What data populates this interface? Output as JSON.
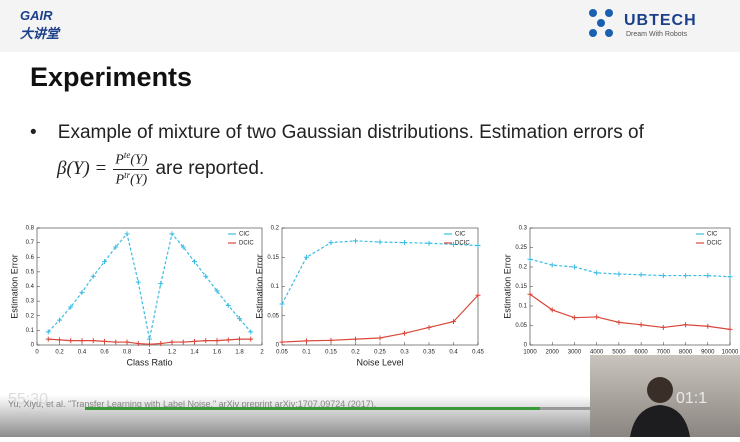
{
  "header": {
    "logo_left": "GAIR",
    "logo_left_sub": "大讲堂",
    "logo_right": "UBTECH",
    "logo_right_sub": "Dream With Robots"
  },
  "slide": {
    "title": "Experiments",
    "bullet": "Example of mixture of two Gaussian distributions. Estimation errors of",
    "formula_lhs": "β(Y) =",
    "num_p": "P",
    "num_sup": "te",
    "num_arg": "(Y)",
    "den_p": "P",
    "den_sup": "tr",
    "den_arg": "(Y)",
    "tail": "are reported."
  },
  "player": {
    "elapsed": "55:30",
    "citation": "Yu, Xiyu, et al. \"Transfer Learning with Label Noise.\" arXiv preprint arXiv:1707.09724 (2017).",
    "remaining": "01:1"
  },
  "chart_data": [
    {
      "type": "line",
      "xlabel": "Class Ratio",
      "ylabel": "Estimation Error",
      "legend": "upper right",
      "x": [
        0.1,
        0.2,
        0.3,
        0.4,
        0.5,
        0.6,
        0.7,
        0.8,
        0.9,
        1.0,
        1.1,
        1.2,
        1.3,
        1.4,
        1.5,
        1.6,
        1.7,
        1.8,
        1.9
      ],
      "series": [
        {
          "name": "CIC",
          "color": "#3bbde3",
          "dashed": true,
          "values": [
            0.09,
            0.17,
            0.26,
            0.36,
            0.47,
            0.57,
            0.67,
            0.76,
            0.43,
            0.04,
            0.42,
            0.76,
            0.67,
            0.57,
            0.47,
            0.37,
            0.27,
            0.18,
            0.09
          ]
        },
        {
          "name": "DCIC",
          "color": "#d9483b",
          "dashed": false,
          "values": [
            0.04,
            0.035,
            0.03,
            0.03,
            0.03,
            0.025,
            0.02,
            0.02,
            0.01,
            0.005,
            0.01,
            0.02,
            0.02,
            0.025,
            0.03,
            0.03,
            0.035,
            0.04,
            0.04
          ]
        }
      ],
      "xlim": [
        0,
        2
      ],
      "ylim": [
        0,
        0.8
      ],
      "xticks": [
        0,
        0.2,
        0.4,
        0.6,
        0.8,
        1,
        1.2,
        1.4,
        1.6,
        1.8,
        2
      ],
      "yticks": [
        0,
        0.1,
        0.2,
        0.3,
        0.4,
        0.5,
        0.6,
        0.7,
        0.8
      ]
    },
    {
      "type": "line",
      "xlabel": "Noise Level",
      "ylabel": "Estimation Error",
      "legend": "upper right",
      "x": [
        0.05,
        0.1,
        0.15,
        0.2,
        0.25,
        0.3,
        0.35,
        0.4,
        0.45
      ],
      "series": [
        {
          "name": "CIC",
          "color": "#3bbde3",
          "dashed": true,
          "values": [
            0.07,
            0.15,
            0.175,
            0.178,
            0.176,
            0.175,
            0.174,
            0.172,
            0.17
          ]
        },
        {
          "name": "DCIC",
          "color": "#d9483b",
          "dashed": false,
          "values": [
            0.005,
            0.007,
            0.008,
            0.01,
            0.012,
            0.02,
            0.03,
            0.04,
            0.085
          ]
        }
      ],
      "xlim": [
        0.05,
        0.45
      ],
      "ylim": [
        0,
        0.2
      ],
      "xticks": [
        0.05,
        0.1,
        0.15,
        0.2,
        0.25,
        0.3,
        0.35,
        0.4,
        0.45
      ],
      "yticks": [
        0,
        0.05,
        0.1,
        0.15,
        0.2
      ]
    },
    {
      "type": "line",
      "ylabel": "Estimation Error",
      "legend": "upper right",
      "x": [
        1000,
        2000,
        3000,
        4000,
        5000,
        6000,
        7000,
        8000,
        9000,
        10000
      ],
      "series": [
        {
          "name": "CIC",
          "color": "#3bbde3",
          "dashed": true,
          "values": [
            0.22,
            0.205,
            0.2,
            0.185,
            0.182,
            0.18,
            0.178,
            0.178,
            0.178,
            0.175
          ]
        },
        {
          "name": "DCIC",
          "color": "#d9483b",
          "dashed": false,
          "values": [
            0.13,
            0.09,
            0.07,
            0.072,
            0.058,
            0.052,
            0.045,
            0.052,
            0.048,
            0.04
          ]
        }
      ],
      "xlim": [
        1000,
        10000
      ],
      "ylim": [
        0,
        0.3
      ],
      "xticks": [
        1000,
        2000,
        3000,
        4000,
        5000,
        6000,
        7000,
        8000,
        9000,
        10000
      ],
      "yticks": [
        0,
        0.05,
        0.1,
        0.15,
        0.2,
        0.25,
        0.3
      ]
    }
  ]
}
